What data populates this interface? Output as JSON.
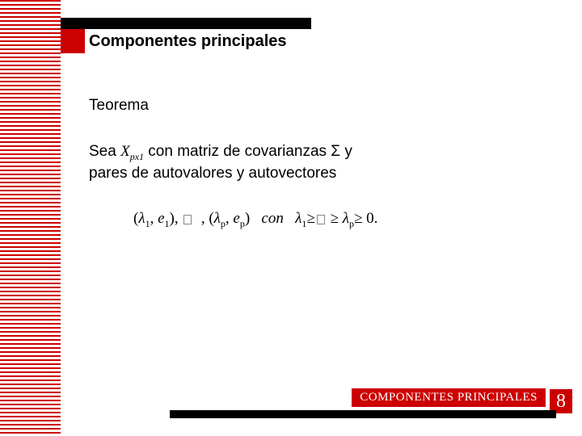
{
  "colors": {
    "red": "#cc0000",
    "black": "#000000",
    "white": "#ffffff"
  },
  "header": {
    "title": "Componentes principales"
  },
  "content": {
    "subtitle": "Teorema",
    "line1_pre": "Sea ",
    "line1_var": "X",
    "line1_sub": "px1",
    "line1_post": " con matriz de covarianzas Σ y",
    "line2": "pares de autovalores y autovectores"
  },
  "formula": {
    "lam": "λ",
    "e": "e",
    "con": "con",
    "sub1": "1",
    "subp": "p",
    "ge": "≥",
    "zero": "0."
  },
  "footer": {
    "label": "COMPONENTES PRINCIPALES",
    "page": "8"
  }
}
